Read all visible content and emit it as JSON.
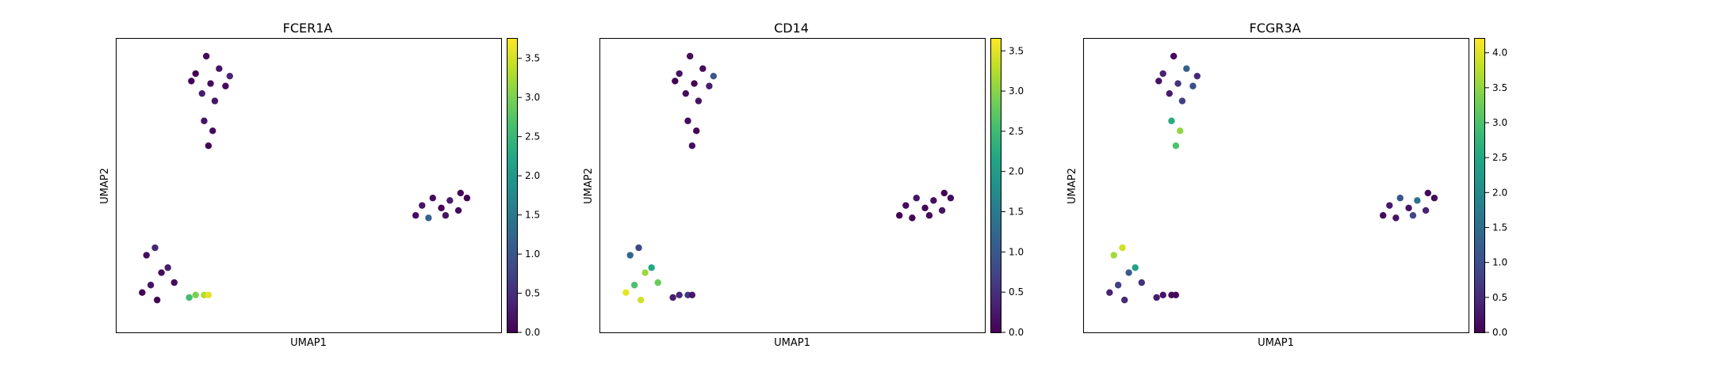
{
  "figure": {
    "type": "umap-scatter-grid",
    "colormap": "viridis",
    "point_size_units": "umap"
  },
  "chart_data": [
    {
      "type": "scatter",
      "title": "FCER1A",
      "xlabel": "UMAP1",
      "ylabel": "UMAP2",
      "xlim": [
        -6.0,
        12.0
      ],
      "ylim": [
        -4.2,
        7.6
      ],
      "colorbar": {
        "vmin": 0.0,
        "vmax": 3.75,
        "ticks": [
          "0.0",
          "0.5",
          "1.0",
          "1.5",
          "2.0",
          "2.5",
          "3.0",
          "3.5"
        ]
      },
      "clusters": [
        {
          "name": "",
          "points": [
            [
              -1.8,
              6.9,
              0.1
            ],
            [
              -2.3,
              6.2,
              0.0
            ],
            [
              -1.2,
              6.4,
              0.2
            ],
            [
              -1.6,
              5.8,
              0.1
            ],
            [
              -0.9,
              5.7,
              0.1
            ],
            [
              -2.0,
              5.4,
              0.3
            ],
            [
              -1.4,
              5.1,
              0.2
            ],
            [
              -2.5,
              5.9,
              0.0
            ],
            [
              -0.7,
              6.1,
              0.4
            ],
            [
              -1.9,
              4.3,
              0.2
            ],
            [
              -1.5,
              3.9,
              0.1
            ],
            [
              -1.7,
              3.3,
              0.0
            ]
          ]
        },
        {
          "name": "",
          "points": [
            [
              -4.6,
              -1.1,
              0.1
            ],
            [
              -4.4,
              -2.3,
              0.2
            ],
            [
              -3.9,
              -1.8,
              0.1
            ],
            [
              -4.1,
              -2.9,
              0.0
            ],
            [
              -3.6,
              -1.6,
              0.3
            ],
            [
              -3.3,
              -2.2,
              0.1
            ],
            [
              -4.8,
              -2.6,
              0.0
            ],
            [
              -4.2,
              -0.8,
              0.4
            ],
            [
              -2.3,
              -2.7,
              3.0
            ],
            [
              -1.9,
              -2.7,
              3.3
            ],
            [
              -2.6,
              -2.8,
              2.6
            ],
            [
              -1.7,
              -2.7,
              3.6
            ]
          ]
        },
        {
          "name": "",
          "points": [
            [
              8.0,
              0.5,
              0.1
            ],
            [
              8.3,
              0.9,
              0.2
            ],
            [
              8.8,
              1.2,
              0.1
            ],
            [
              9.2,
              0.8,
              0.0
            ],
            [
              9.6,
              1.1,
              0.3
            ],
            [
              10.0,
              0.7,
              0.1
            ],
            [
              10.4,
              1.2,
              0.0
            ],
            [
              8.6,
              0.4,
              1.2
            ],
            [
              9.4,
              0.5,
              0.2
            ],
            [
              10.1,
              1.4,
              0.1
            ]
          ]
        }
      ]
    },
    {
      "type": "scatter",
      "title": "CD14",
      "xlabel": "UMAP1",
      "ylabel": "UMAP2",
      "xlim": [
        -6.0,
        12.0
      ],
      "ylim": [
        -4.2,
        7.6
      ],
      "colorbar": {
        "vmin": 0.0,
        "vmax": 3.65,
        "ticks": [
          "0.0",
          "0.5",
          "1.0",
          "1.5",
          "2.0",
          "2.5",
          "3.0",
          "3.5"
        ]
      },
      "clusters": [
        {
          "name": "",
          "points": [
            [
              -1.8,
              6.9,
              0.1
            ],
            [
              -2.3,
              6.2,
              0.2
            ],
            [
              -1.2,
              6.4,
              0.1
            ],
            [
              -1.6,
              5.8,
              0.0
            ],
            [
              -0.9,
              5.7,
              0.3
            ],
            [
              -2.0,
              5.4,
              0.1
            ],
            [
              -1.4,
              5.1,
              0.2
            ],
            [
              -2.5,
              5.9,
              0.0
            ],
            [
              -0.7,
              6.1,
              1.0
            ],
            [
              -1.9,
              4.3,
              0.1
            ],
            [
              -1.5,
              3.9,
              0.0
            ],
            [
              -1.7,
              3.3,
              0.1
            ]
          ]
        },
        {
          "name": "",
          "points": [
            [
              -4.6,
              -1.1,
              1.2
            ],
            [
              -4.4,
              -2.3,
              2.6
            ],
            [
              -3.9,
              -1.8,
              3.1
            ],
            [
              -4.1,
              -2.9,
              3.4
            ],
            [
              -3.6,
              -1.6,
              2.2
            ],
            [
              -3.3,
              -2.2,
              2.8
            ],
            [
              -4.8,
              -2.6,
              3.5
            ],
            [
              -4.2,
              -0.8,
              0.8
            ],
            [
              -2.3,
              -2.7,
              0.4
            ],
            [
              -1.9,
              -2.7,
              0.6
            ],
            [
              -2.6,
              -2.8,
              0.3
            ],
            [
              -1.7,
              -2.7,
              0.2
            ]
          ]
        },
        {
          "name": "",
          "points": [
            [
              8.0,
              0.5,
              0.0
            ],
            [
              8.3,
              0.9,
              0.1
            ],
            [
              8.8,
              1.2,
              0.2
            ],
            [
              9.2,
              0.8,
              0.0
            ],
            [
              9.6,
              1.1,
              0.1
            ],
            [
              10.0,
              0.7,
              0.2
            ],
            [
              10.4,
              1.2,
              0.1
            ],
            [
              8.6,
              0.4,
              0.0
            ],
            [
              9.4,
              0.5,
              0.1
            ],
            [
              10.1,
              1.4,
              0.0
            ]
          ]
        }
      ]
    },
    {
      "type": "scatter",
      "title": "FCGR3A",
      "xlabel": "UMAP1",
      "ylabel": "UMAP2",
      "xlim": [
        -6.0,
        12.0
      ],
      "ylim": [
        -4.2,
        7.6
      ],
      "colorbar": {
        "vmin": 0.0,
        "vmax": 4.2,
        "ticks": [
          "0.0",
          "0.5",
          "1.0",
          "1.5",
          "2.0",
          "2.5",
          "3.0",
          "3.5",
          "4.0"
        ]
      },
      "clusters": [
        {
          "name": "",
          "points": [
            [
              -1.8,
              6.9,
              0.1
            ],
            [
              -2.3,
              6.2,
              0.4
            ],
            [
              -1.2,
              6.4,
              1.3
            ],
            [
              -1.6,
              5.8,
              0.6
            ],
            [
              -0.9,
              5.7,
              1.0
            ],
            [
              -2.0,
              5.4,
              0.3
            ],
            [
              -1.4,
              5.1,
              0.8
            ],
            [
              -2.5,
              5.9,
              0.2
            ],
            [
              -0.7,
              6.1,
              0.5
            ],
            [
              -1.9,
              4.3,
              2.6
            ],
            [
              -1.5,
              3.9,
              3.5
            ],
            [
              -1.7,
              3.3,
              3.0
            ]
          ]
        },
        {
          "name": "",
          "points": [
            [
              -4.6,
              -1.1,
              3.6
            ],
            [
              -4.4,
              -2.3,
              0.8
            ],
            [
              -3.9,
              -1.8,
              1.2
            ],
            [
              -4.1,
              -2.9,
              0.5
            ],
            [
              -3.6,
              -1.6,
              2.4
            ],
            [
              -3.3,
              -2.2,
              0.6
            ],
            [
              -4.8,
              -2.6,
              0.4
            ],
            [
              -4.2,
              -0.8,
              3.9
            ],
            [
              -2.3,
              -2.7,
              0.2
            ],
            [
              -1.9,
              -2.7,
              0.1
            ],
            [
              -2.6,
              -2.8,
              0.3
            ],
            [
              -1.7,
              -2.7,
              0.1
            ]
          ]
        },
        {
          "name": "",
          "points": [
            [
              8.0,
              0.5,
              0.1
            ],
            [
              8.3,
              0.9,
              0.3
            ],
            [
              8.8,
              1.2,
              1.1
            ],
            [
              9.2,
              0.8,
              0.2
            ],
            [
              9.6,
              1.1,
              1.6
            ],
            [
              10.0,
              0.7,
              0.4
            ],
            [
              10.4,
              1.2,
              0.1
            ],
            [
              8.6,
              0.4,
              0.2
            ],
            [
              9.4,
              0.5,
              0.9
            ],
            [
              10.1,
              1.4,
              0.1
            ]
          ]
        }
      ]
    }
  ]
}
